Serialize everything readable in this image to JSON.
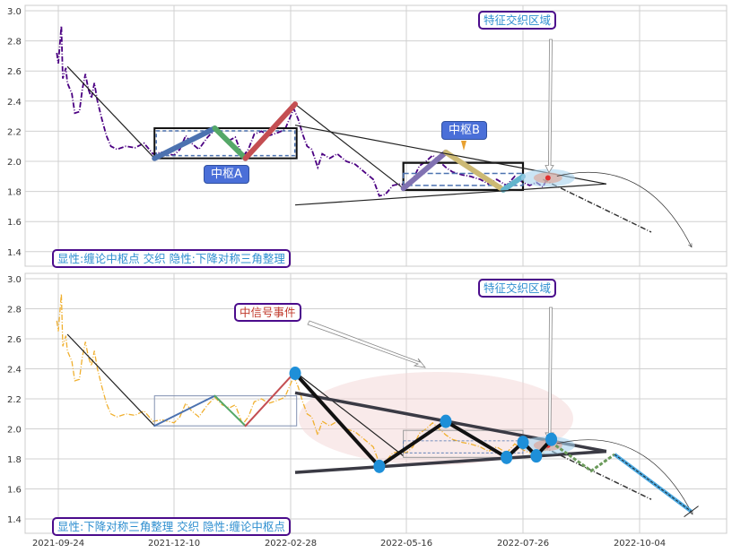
{
  "chart_data": [
    {
      "type": "line",
      "panel": "top",
      "ylim": [
        1.35,
        3.03
      ],
      "yticks": [
        "1.4",
        "1.6",
        "1.8",
        "2.0",
        "2.2",
        "2.4",
        "2.6",
        "2.8",
        "3.0"
      ],
      "xticks": [
        "2021-09-24",
        "2021-12-10",
        "2022-02-28",
        "2022-05-16",
        "2022-07-26",
        "2022-10-04"
      ],
      "grid": true,
      "price_color": "#4b0082",
      "price_style": "dash-dot",
      "annotations": {
        "feature_zone": "特征交织区域",
        "pivot_a": "中枢A",
        "pivot_b": "中枢B",
        "caption": "显性:缠论中枢点 交织 隐性:下降对称三角整理"
      },
      "pivot_a_box": {
        "start": "2021-11-27",
        "end": "2022-03-04",
        "high": 2.22,
        "low": 2.02
      },
      "pivot_b_box": {
        "start": "2022-05-14",
        "end": "2022-07-26",
        "high": 1.99,
        "low": 1.81,
        "inner_high": 1.92,
        "inner_low": 1.84
      },
      "strokes": [
        {
          "from": [
            "2021-11-27",
            2.02
          ],
          "to": [
            "2022-01-07",
            2.22
          ],
          "color": "#4c72b0"
        },
        {
          "from": [
            "2022-01-07",
            2.22
          ],
          "to": [
            "2022-01-28",
            2.02
          ],
          "color": "#55a868"
        },
        {
          "from": [
            "2022-01-28",
            2.02
          ],
          "to": [
            "2022-03-03",
            2.38
          ],
          "color": "#c44e52"
        },
        {
          "from": [
            "2022-05-14",
            1.82
          ],
          "to": [
            "2022-06-09",
            2.06
          ],
          "color": "#8172b2"
        },
        {
          "from": [
            "2022-06-09",
            2.06
          ],
          "to": [
            "2022-07-14",
            1.81
          ],
          "color": "#ccb974"
        },
        {
          "from": [
            "2022-07-14",
            1.81
          ],
          "to": [
            "2022-07-26",
            1.9
          ],
          "color": "#64b5cd"
        }
      ]
    },
    {
      "type": "line",
      "panel": "bottom",
      "ylim": [
        1.35,
        3.03
      ],
      "yticks": [
        "1.4",
        "1.6",
        "1.8",
        "2.0",
        "2.2",
        "2.4",
        "2.6",
        "2.8",
        "3.0"
      ],
      "xticks": [
        "2021-09-24",
        "2021-12-10",
        "2022-02-28",
        "2022-05-16",
        "2022-07-26",
        "2022-10-04"
      ],
      "grid": true,
      "price_color": "#f0b030",
      "price_style": "dash-dot",
      "annotations": {
        "feature_zone": "特征交织区域",
        "signal_event": "中信号事件",
        "caption": "显性:下降对称三角整理 交织 隐性:缠论中枢点"
      },
      "pivot_points": [
        [
          "2022-03-03",
          2.37
        ],
        [
          "2022-04-28",
          1.75
        ],
        [
          "2022-06-09",
          2.05
        ],
        [
          "2022-07-16",
          1.81
        ],
        [
          "2022-07-26",
          1.91
        ],
        [
          "2022-08-03",
          1.82
        ],
        [
          "2022-08-12",
          1.93
        ]
      ],
      "projection": [
        [
          "2022-08-12",
          1.91
        ],
        [
          "2022-09-05",
          1.72
        ],
        [
          "2022-09-19",
          1.83
        ],
        [
          "2022-11-04",
          1.45
        ]
      ]
    }
  ],
  "price_series": [
    [
      "2021-09-23",
      2.72
    ],
    [
      "2021-09-24",
      2.65
    ],
    [
      "2021-09-26",
      2.9
    ],
    [
      "2021-09-27",
      2.55
    ],
    [
      "2021-09-29",
      2.62
    ],
    [
      "2021-09-30",
      2.52
    ],
    [
      "2021-10-03",
      2.45
    ],
    [
      "2021-10-05",
      2.32
    ],
    [
      "2021-10-08",
      2.33
    ],
    [
      "2021-10-10",
      2.48
    ],
    [
      "2021-10-12",
      2.58
    ],
    [
      "2021-10-14",
      2.48
    ],
    [
      "2021-10-16",
      2.42
    ],
    [
      "2021-10-18",
      2.52
    ],
    [
      "2021-10-20",
      2.4
    ],
    [
      "2021-10-23",
      2.28
    ],
    [
      "2021-10-26",
      2.17
    ],
    [
      "2021-10-29",
      2.1
    ],
    [
      "2021-11-02",
      2.08
    ],
    [
      "2021-11-08",
      2.1
    ],
    [
      "2021-11-14",
      2.09
    ],
    [
      "2021-11-20",
      2.12
    ],
    [
      "2021-11-26",
      2.05
    ],
    [
      "2021-12-02",
      2.06
    ],
    [
      "2021-12-10",
      2.04
    ],
    [
      "2021-12-14",
      2.08
    ],
    [
      "2021-12-18",
      2.17
    ],
    [
      "2021-12-22",
      2.12
    ],
    [
      "2021-12-27",
      2.08
    ],
    [
      "2022-01-02",
      2.16
    ],
    [
      "2022-01-07",
      2.21
    ],
    [
      "2022-01-12",
      2.16
    ],
    [
      "2022-01-17",
      2.14
    ],
    [
      "2022-01-21",
      2.16
    ],
    [
      "2022-01-26",
      2.03
    ],
    [
      "2022-01-30",
      2.08
    ],
    [
      "2022-02-03",
      2.18
    ],
    [
      "2022-02-08",
      2.2
    ],
    [
      "2022-02-13",
      2.17
    ],
    [
      "2022-02-19",
      2.19
    ],
    [
      "2022-02-24",
      2.21
    ],
    [
      "2022-02-28",
      2.3
    ],
    [
      "2022-03-02",
      2.35
    ],
    [
      "2022-03-05",
      2.28
    ],
    [
      "2022-03-08",
      2.18
    ],
    [
      "2022-03-11",
      2.1
    ],
    [
      "2022-03-14",
      2.08
    ],
    [
      "2022-03-18",
      1.96
    ],
    [
      "2022-03-21",
      2.05
    ],
    [
      "2022-03-26",
      2.02
    ],
    [
      "2022-03-31",
      2.05
    ],
    [
      "2022-04-06",
      2.0
    ],
    [
      "2022-04-12",
      1.98
    ],
    [
      "2022-04-18",
      1.93
    ],
    [
      "2022-04-24",
      1.88
    ],
    [
      "2022-04-28",
      1.77
    ],
    [
      "2022-05-02",
      1.78
    ],
    [
      "2022-05-07",
      1.84
    ],
    [
      "2022-05-12",
      1.85
    ],
    [
      "2022-05-16",
      1.84
    ],
    [
      "2022-05-20",
      1.88
    ],
    [
      "2022-05-24",
      1.97
    ],
    [
      "2022-05-28",
      2.0
    ],
    [
      "2022-06-01",
      2.04
    ],
    [
      "2022-06-05",
      2.0
    ],
    [
      "2022-06-09",
      1.96
    ],
    [
      "2022-06-13",
      1.93
    ],
    [
      "2022-06-19",
      1.91
    ],
    [
      "2022-06-24",
      1.9
    ],
    [
      "2022-06-30",
      1.88
    ],
    [
      "2022-07-05",
      1.85
    ],
    [
      "2022-07-10",
      1.88
    ],
    [
      "2022-07-16",
      1.84
    ],
    [
      "2022-07-21",
      1.9
    ],
    [
      "2022-07-26",
      1.86
    ],
    [
      "2022-07-30",
      1.84
    ],
    [
      "2022-08-03",
      1.86
    ],
    [
      "2022-08-07",
      1.83
    ],
    [
      "2022-08-10",
      1.9
    ]
  ],
  "common": {
    "first_segment": [
      [
        "2021-09-30",
        2.63
      ],
      [
        "2021-11-27",
        2.02
      ]
    ],
    "drop_segment": [
      [
        "2022-03-03",
        2.38
      ],
      [
        "2022-05-14",
        1.82
      ]
    ],
    "triangle_upper": [
      [
        "2022-03-03",
        2.24
      ],
      [
        "2022-09-14",
        1.85
      ]
    ],
    "triangle_lower": [
      [
        "2022-03-03",
        1.71
      ],
      [
        "2022-09-14",
        1.85
      ]
    ],
    "target_line": [
      [
        "2022-08-07",
        1.88
      ],
      [
        "2022-10-11",
        1.53
      ]
    ]
  }
}
